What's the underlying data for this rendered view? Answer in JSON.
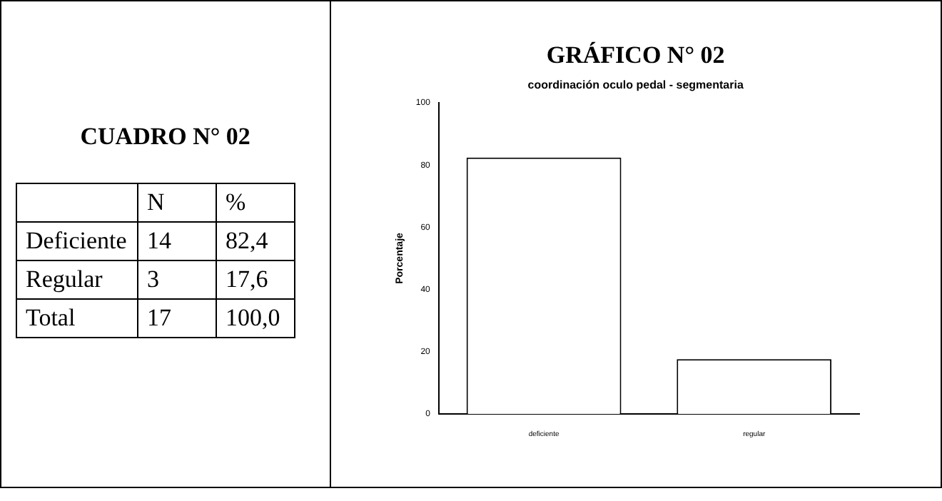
{
  "chart_data": [
    {
      "type": "other",
      "title": "CUADRO N° 02",
      "annotations": [
        "N",
        "%",
        "Deficiente",
        "14",
        "82,4",
        "Regular",
        "3",
        "17,6",
        "Total",
        "17",
        "100,0"
      ]
    },
    {
      "type": "bar",
      "title": "GRÁFICO N° 02",
      "subtitle": "coordinación oculo pedal - segmentaria",
      "ylabel": "Porcentaje",
      "categories": [
        "deficiente",
        "regular"
      ],
      "values": [
        82.4,
        17.6
      ],
      "color": "#ffffff",
      "ylim": [
        0,
        100
      ],
      "yticks": [
        0,
        20,
        40,
        60,
        80,
        100
      ],
      "grid": false,
      "legend": false
    }
  ]
}
